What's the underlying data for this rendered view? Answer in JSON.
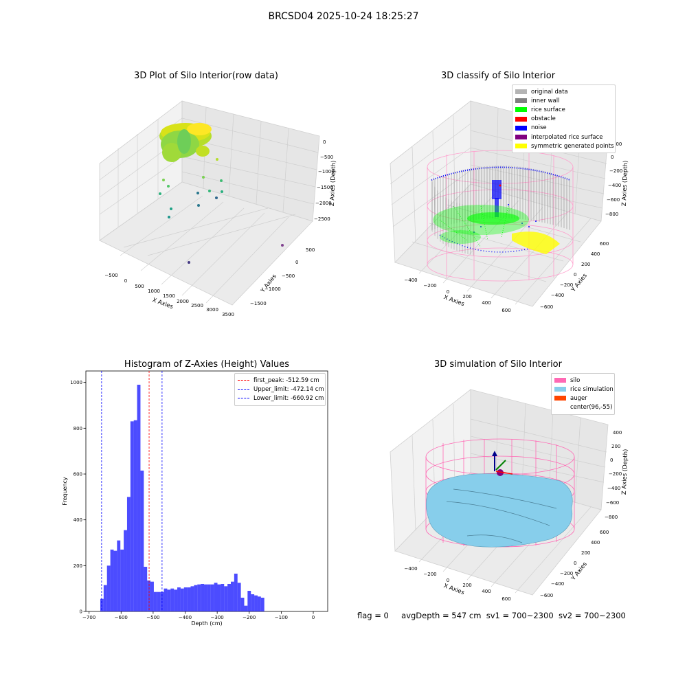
{
  "suptitle": "BRCSD04 2025-10-24 18:25:27",
  "panels": {
    "raw": {
      "title": "3D Plot of Silo Interior(row data)",
      "xlabel": "X Axies",
      "ylabel": "Y Axies",
      "zlabel": "Z Axies (Depth)",
      "xticks": [
        "−500",
        "0",
        "500",
        "1000",
        "1500",
        "2000",
        "2500",
        "3000",
        "3500"
      ],
      "yticks": [
        "500",
        "0",
        "−500",
        "−1000",
        "−1500"
      ],
      "zticks": [
        "0",
        "−500",
        "−1000",
        "−1500",
        "−2000",
        "−2500"
      ]
    },
    "classify": {
      "title": "3D classify of Silo Interior",
      "xlabel": "X Axies",
      "ylabel": "Y Axies",
      "zlabel": "Z Axies (Depth)",
      "xticks": [
        "−400",
        "−200",
        "0",
        "200",
        "400",
        "600"
      ],
      "yticks": [
        "600",
        "400",
        "200",
        "0",
        "−200",
        "−400",
        "−600"
      ],
      "zticks": [
        "200",
        "0",
        "−200",
        "−400",
        "−600",
        "−800"
      ],
      "legend": [
        {
          "label": "original data",
          "color": "#b4b4b4"
        },
        {
          "label": "inner wall",
          "color": "#808080"
        },
        {
          "label": "rice surface",
          "color": "#00ff00"
        },
        {
          "label": "obstacle",
          "color": "#ff0000"
        },
        {
          "label": "noise",
          "color": "#0000ff"
        },
        {
          "label": "interpolated rice surface",
          "color": "#800080"
        },
        {
          "label": "symmetric generated points",
          "color": "#ffff00"
        }
      ]
    },
    "simulation": {
      "title": "3D simulation of Silo Interior",
      "xlabel": "X Axies",
      "ylabel": "Y Axies",
      "zlabel": "Z Axies (Depth)",
      "xticks": [
        "−400",
        "−200",
        "0",
        "200",
        "400",
        "600"
      ],
      "yticks": [
        "600",
        "400",
        "200",
        "0",
        "−200",
        "−400",
        "−600"
      ],
      "zticks": [
        "400",
        "200",
        "0",
        "−200",
        "−400",
        "−600",
        "−800"
      ],
      "legend": [
        {
          "label": "silo",
          "color": "#ff69b4"
        },
        {
          "label": "rice simulation",
          "color": "#87ceeb"
        },
        {
          "label": "auger",
          "color": "#ff4500"
        },
        {
          "label": "center(96,-55)",
          "color": ""
        }
      ]
    }
  },
  "chart_data": {
    "type": "bar",
    "title": "Histogram of Z-Axies (Height) Values",
    "xlabel": "Depth (cm)",
    "ylabel": "Frequency",
    "xlim": [
      -710,
      45
    ],
    "ylim": [
      0,
      1050
    ],
    "xticks": [
      -700,
      -600,
      -500,
      -400,
      -300,
      -200,
      -100,
      0
    ],
    "xtick_labels": [
      "−700",
      "−600",
      "−500",
      "−400",
      "−300",
      "−200",
      "−100",
      "0"
    ],
    "yticks": [
      0,
      200,
      400,
      600,
      800,
      1000
    ],
    "bar_color": "#0000ff",
    "bin_start": -665,
    "bin_width": 10.45,
    "values": [
      55,
      115,
      200,
      270,
      265,
      310,
      270,
      355,
      500,
      830,
      835,
      990,
      615,
      195,
      135,
      130,
      85,
      85,
      85,
      100,
      95,
      100,
      95,
      105,
      100,
      105,
      105,
      110,
      115,
      118,
      120,
      118,
      118,
      118,
      125,
      118,
      120,
      110,
      120,
      130,
      165,
      125,
      60,
      25,
      90,
      75,
      70,
      65,
      60
    ],
    "vlines": [
      {
        "label": "first_peak: -512.59 cm",
        "x": -512.59,
        "color": "#ff0000"
      },
      {
        "label": "Upper_limit: -472.14 cm",
        "x": -472.14,
        "color": "#0000ff"
      },
      {
        "label": "Lower_limit: -660.92 cm",
        "x": -660.92,
        "color": "#0000ff"
      }
    ],
    "legend_position": "upper right"
  },
  "footer": {
    "flag": "flag = 0",
    "avg_depth": "avgDepth = 547 cm",
    "sv1": "sv1 = 700~2300",
    "sv2": "sv2 = 700~2300"
  }
}
